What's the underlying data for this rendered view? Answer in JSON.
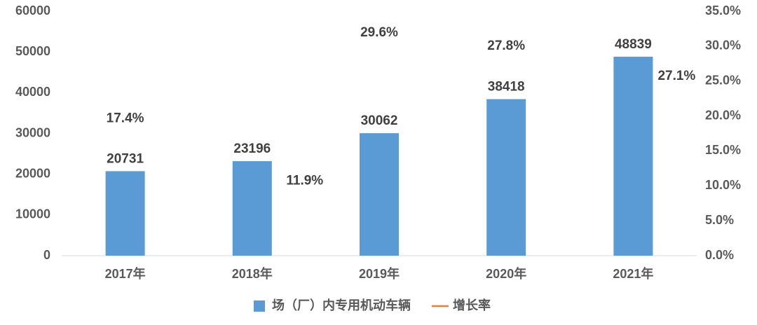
{
  "chart_data": {
    "type": "bar",
    "categories": [
      "2017年",
      "2018年",
      "2019年",
      "2020年",
      "2021年"
    ],
    "series": [
      {
        "name": "场（厂）内专用机动车辆",
        "type": "bar",
        "color": "#5b9bd5",
        "values": [
          20731,
          23196,
          30062,
          38418,
          48839
        ]
      },
      {
        "name": "增长率",
        "type": "line",
        "axis": "y2",
        "color": "#ed7d31",
        "values": [
          17.4,
          11.9,
          29.6,
          27.8,
          27.1
        ],
        "value_labels": [
          "17.4%",
          "11.9%",
          "29.6%",
          "27.8%",
          "27.1%"
        ]
      }
    ],
    "ylim": [
      0,
      60000
    ],
    "yticks": [
      0,
      10000,
      20000,
      30000,
      40000,
      50000,
      60000
    ],
    "y2lim": [
      0,
      35
    ],
    "y2ticks": [
      {
        "value": 0,
        "label": "0.0%"
      },
      {
        "value": 5,
        "label": "5.0%"
      },
      {
        "value": 10,
        "label": "10.0%"
      },
      {
        "value": 15,
        "label": "15.0%"
      },
      {
        "value": 20,
        "label": "20.0%"
      },
      {
        "value": 25,
        "label": "25.0%"
      },
      {
        "value": 30,
        "label": "30.0%"
      },
      {
        "value": 35,
        "label": "35.0%"
      }
    ],
    "legend": "bottom",
    "grid": false
  }
}
